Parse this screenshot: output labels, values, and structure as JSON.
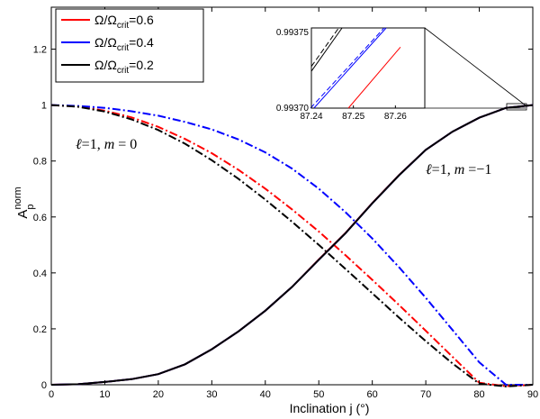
{
  "chart_data": [
    {
      "type": "line",
      "xlabel": "Inclination j (°)",
      "ylabel_main": "A",
      "ylabel_sup": "norm",
      "ylabel_sub": "p",
      "xlim": [
        0,
        90
      ],
      "ylim": [
        0,
        1.35
      ],
      "xticks": [
        "0",
        "10",
        "20",
        "30",
        "40",
        "50",
        "60",
        "70",
        "80",
        "90"
      ],
      "yticks": [
        "0",
        "0.2",
        "0.4",
        "0.6",
        "0.8",
        "1",
        "1.2"
      ],
      "grid": false,
      "legend_position": "top-left",
      "legend": [
        {
          "base": "Ω/Ω",
          "sub": "crit",
          "suffix": "=0.6",
          "color": "#ff0000"
        },
        {
          "base": "Ω/Ω",
          "sub": "crit",
          "suffix": "=0.4",
          "color": "#0000ff"
        },
        {
          "base": "Ω/Ω",
          "sub": "crit",
          "suffix": "=0.2",
          "color": "#000000"
        }
      ],
      "annotations": {
        "m0": {
          "a": "ℓ",
          "b": "=1, ",
          "c": "m",
          "d": " = 0"
        },
        "m1": {
          "a": "ℓ",
          "b": "=1, ",
          "c": "m",
          "d": " =−1"
        }
      },
      "x": [
        0,
        5,
        10,
        15,
        20,
        25,
        30,
        35,
        40,
        45,
        50,
        55,
        60,
        65,
        70,
        75,
        80,
        85,
        90
      ],
      "series": [
        {
          "group": "m0",
          "ratio": "0.6",
          "color": "#ff0000",
          "style": "dashdot",
          "values": [
            1.0,
            0.995,
            0.98,
            0.956,
            0.922,
            0.879,
            0.828,
            0.768,
            0.701,
            0.627,
            0.548,
            0.463,
            0.375,
            0.285,
            0.193,
            0.1,
            0.007,
            -0.005,
            0.0
          ]
        },
        {
          "group": "m0",
          "ratio": "0.4",
          "color": "#0000ff",
          "style": "dashdot",
          "values": [
            1.0,
            0.997,
            0.99,
            0.978,
            0.962,
            0.94,
            0.913,
            0.877,
            0.831,
            0.773,
            0.701,
            0.617,
            0.523,
            0.42,
            0.311,
            0.196,
            0.08,
            0.0,
            0.0
          ]
        },
        {
          "group": "m0",
          "ratio": "0.2",
          "color": "#000000",
          "style": "dashdot",
          "values": [
            1.0,
            0.994,
            0.977,
            0.949,
            0.911,
            0.862,
            0.803,
            0.736,
            0.662,
            0.583,
            0.5,
            0.414,
            0.327,
            0.24,
            0.156,
            0.076,
            0.004,
            -0.006,
            0.0
          ]
        },
        {
          "group": "m1",
          "ratio": "0.6",
          "color": "#ff0000",
          "style": "solid",
          "values": [
            0.0,
            0.002,
            0.01,
            0.02,
            0.038,
            0.073,
            0.127,
            0.191,
            0.265,
            0.35,
            0.448,
            0.543,
            0.65,
            0.75,
            0.84,
            0.905,
            0.955,
            0.99,
            1.0
          ]
        },
        {
          "group": "m1",
          "ratio": "0.4",
          "color": "#0000ff",
          "style": "solid",
          "values": [
            0.0,
            0.002,
            0.01,
            0.02,
            0.038,
            0.073,
            0.127,
            0.191,
            0.265,
            0.35,
            0.447,
            0.542,
            0.649,
            0.749,
            0.84,
            0.905,
            0.955,
            0.99,
            1.0
          ]
        },
        {
          "group": "m1",
          "ratio": "0.2",
          "color": "#000000",
          "style": "solid",
          "values": [
            0.0,
            0.002,
            0.01,
            0.02,
            0.038,
            0.073,
            0.127,
            0.191,
            0.265,
            0.35,
            0.447,
            0.542,
            0.649,
            0.749,
            0.84,
            0.905,
            0.955,
            0.99,
            1.0
          ]
        }
      ]
    },
    {
      "type": "line",
      "role": "inset-zoom",
      "xlim": [
        87.24,
        87.267
      ],
      "ylim": [
        0.9937,
        0.99375
      ],
      "xticks": [
        "87.24",
        "87.25",
        "87.26"
      ],
      "xtick_values": [
        87.24,
        87.25,
        87.26
      ],
      "yticks": [
        "0.99370",
        "0.99375"
      ],
      "ytick_values": [
        0.9937,
        0.99375
      ],
      "series": [
        {
          "color": "#000000",
          "style": "solid",
          "x": [
            87.24,
            87.2473
          ],
          "values": [
            0.993723,
            0.99375
          ]
        },
        {
          "color": "#000000",
          "style": "dashed",
          "x": [
            87.24,
            87.2465
          ],
          "values": [
            0.993726,
            0.99375
          ]
        },
        {
          "color": "#0000ff",
          "style": "solid",
          "x": [
            87.2406,
            87.2578
          ],
          "values": [
            0.9937,
            0.99375
          ]
        },
        {
          "color": "#0000ff",
          "style": "dashed",
          "x": [
            87.2398,
            87.2573
          ],
          "values": [
            0.9937,
            0.99375
          ]
        },
        {
          "color": "#ff0000",
          "style": "solid",
          "x": [
            87.2488,
            87.2612
          ],
          "values": [
            0.9937,
            0.993738
          ]
        }
      ]
    }
  ]
}
